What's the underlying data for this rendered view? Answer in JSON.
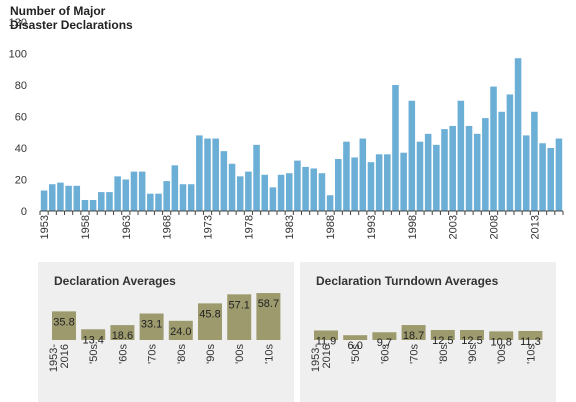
{
  "chart_data": [
    {
      "type": "bar",
      "title_lines": [
        "Number of Major",
        "Disaster Declarations"
      ],
      "xlabel": "",
      "ylabel": "",
      "ylim": [
        0,
        120
      ],
      "yticks": [
        0,
        20,
        40,
        60,
        80,
        100,
        120
      ],
      "grid": false,
      "color": "#6baed6",
      "x_tick_labels": [
        "1953",
        "1958",
        "1963",
        "1968",
        "1973",
        "1978",
        "1983",
        "1988",
        "1993",
        "1998",
        "2003",
        "2008",
        "2013"
      ],
      "categories": [
        1953,
        1954,
        1955,
        1956,
        1957,
        1958,
        1959,
        1960,
        1961,
        1962,
        1963,
        1964,
        1965,
        1966,
        1967,
        1968,
        1969,
        1970,
        1971,
        1972,
        1973,
        1974,
        1975,
        1976,
        1977,
        1978,
        1979,
        1980,
        1981,
        1982,
        1983,
        1984,
        1985,
        1986,
        1987,
        1988,
        1989,
        1990,
        1991,
        1992,
        1993,
        1994,
        1995,
        1996,
        1997,
        1998,
        1999,
        2000,
        2001,
        2002,
        2003,
        2004,
        2005,
        2006,
        2007,
        2008,
        2009,
        2010,
        2011,
        2012,
        2013,
        2014,
        2015,
        2016
      ],
      "values": [
        13,
        17,
        18,
        16,
        16,
        7,
        7,
        12,
        12,
        22,
        20,
        25,
        25,
        11,
        11,
        19,
        29,
        17,
        17,
        48,
        46,
        46,
        38,
        30,
        22,
        25,
        42,
        23,
        15,
        23,
        24,
        32,
        28,
        27,
        24,
        10,
        33,
        44,
        34,
        46,
        31,
        36,
        36,
        80,
        37,
        70,
        44,
        49,
        42,
        52,
        54,
        70,
        54,
        49,
        59,
        79,
        63,
        74,
        97,
        48,
        63,
        43,
        40,
        46
      ]
    },
    {
      "type": "bar",
      "title": "Declaration Averages",
      "color": "#9d9b6e",
      "categories": [
        "1953-\n2016",
        "'50s",
        "'60s",
        "'70s",
        "'80s",
        "'90s",
        "'00s",
        "'10s"
      ],
      "values": [
        35.8,
        13.4,
        18.6,
        33.1,
        24.0,
        45.8,
        57.1,
        58.7
      ],
      "value_labels": [
        "35.8",
        "13.4",
        "18.6",
        "33.1",
        "24.0",
        "45.8",
        "57.1",
        "58.7"
      ],
      "ylim": [
        0,
        60
      ]
    },
    {
      "type": "bar",
      "title": "Declaration Turndown Averages",
      "color": "#9d9b6e",
      "categories": [
        "1953-\n2016",
        "'50s",
        "'60s",
        "'70s",
        "'80s",
        "'90s",
        "'00s",
        "'10s"
      ],
      "values": [
        11.9,
        6.0,
        9.7,
        18.7,
        12.5,
        12.5,
        10.8,
        11.3
      ],
      "value_labels": [
        "11.9",
        "6.0",
        "9.7",
        "18.7",
        "12.5",
        "12.5",
        "10.8",
        "11.3"
      ],
      "ylim": [
        0,
        60
      ]
    }
  ]
}
